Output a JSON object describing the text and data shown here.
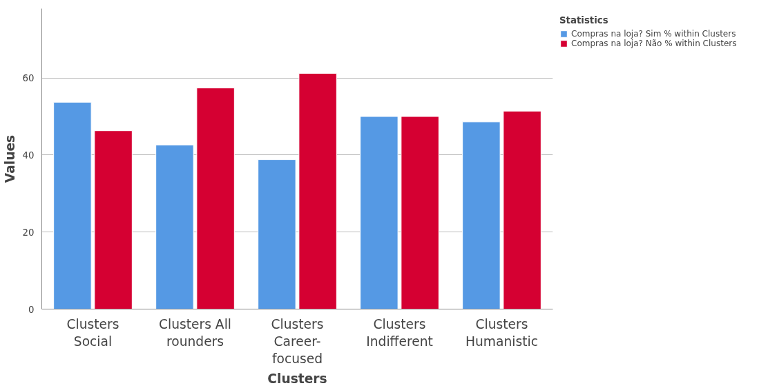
{
  "chart_data": {
    "type": "bar",
    "xlabel": "Clusters",
    "ylabel": "Values",
    "legend_title": "Statistics",
    "categories": [
      "Clusters Social",
      "Clusters All rounders",
      "Clusters Career-focused",
      "Clusters Indifferent",
      "Clusters Humanistic"
    ],
    "series": [
      {
        "name": "Compras na loja? Sim % within Clusters",
        "color": "#5599e4",
        "values": [
          53.7,
          42.6,
          38.8,
          50.0,
          48.6
        ]
      },
      {
        "name": "Compras na loja? Não % within Clusters",
        "color": "#d50032",
        "values": [
          46.3,
          57.4,
          61.2,
          50.0,
          51.4
        ]
      }
    ],
    "ylim": [
      0,
      78
    ],
    "yticks": [
      0,
      20,
      40,
      60
    ],
    "grid": "y",
    "legend": "top right"
  }
}
